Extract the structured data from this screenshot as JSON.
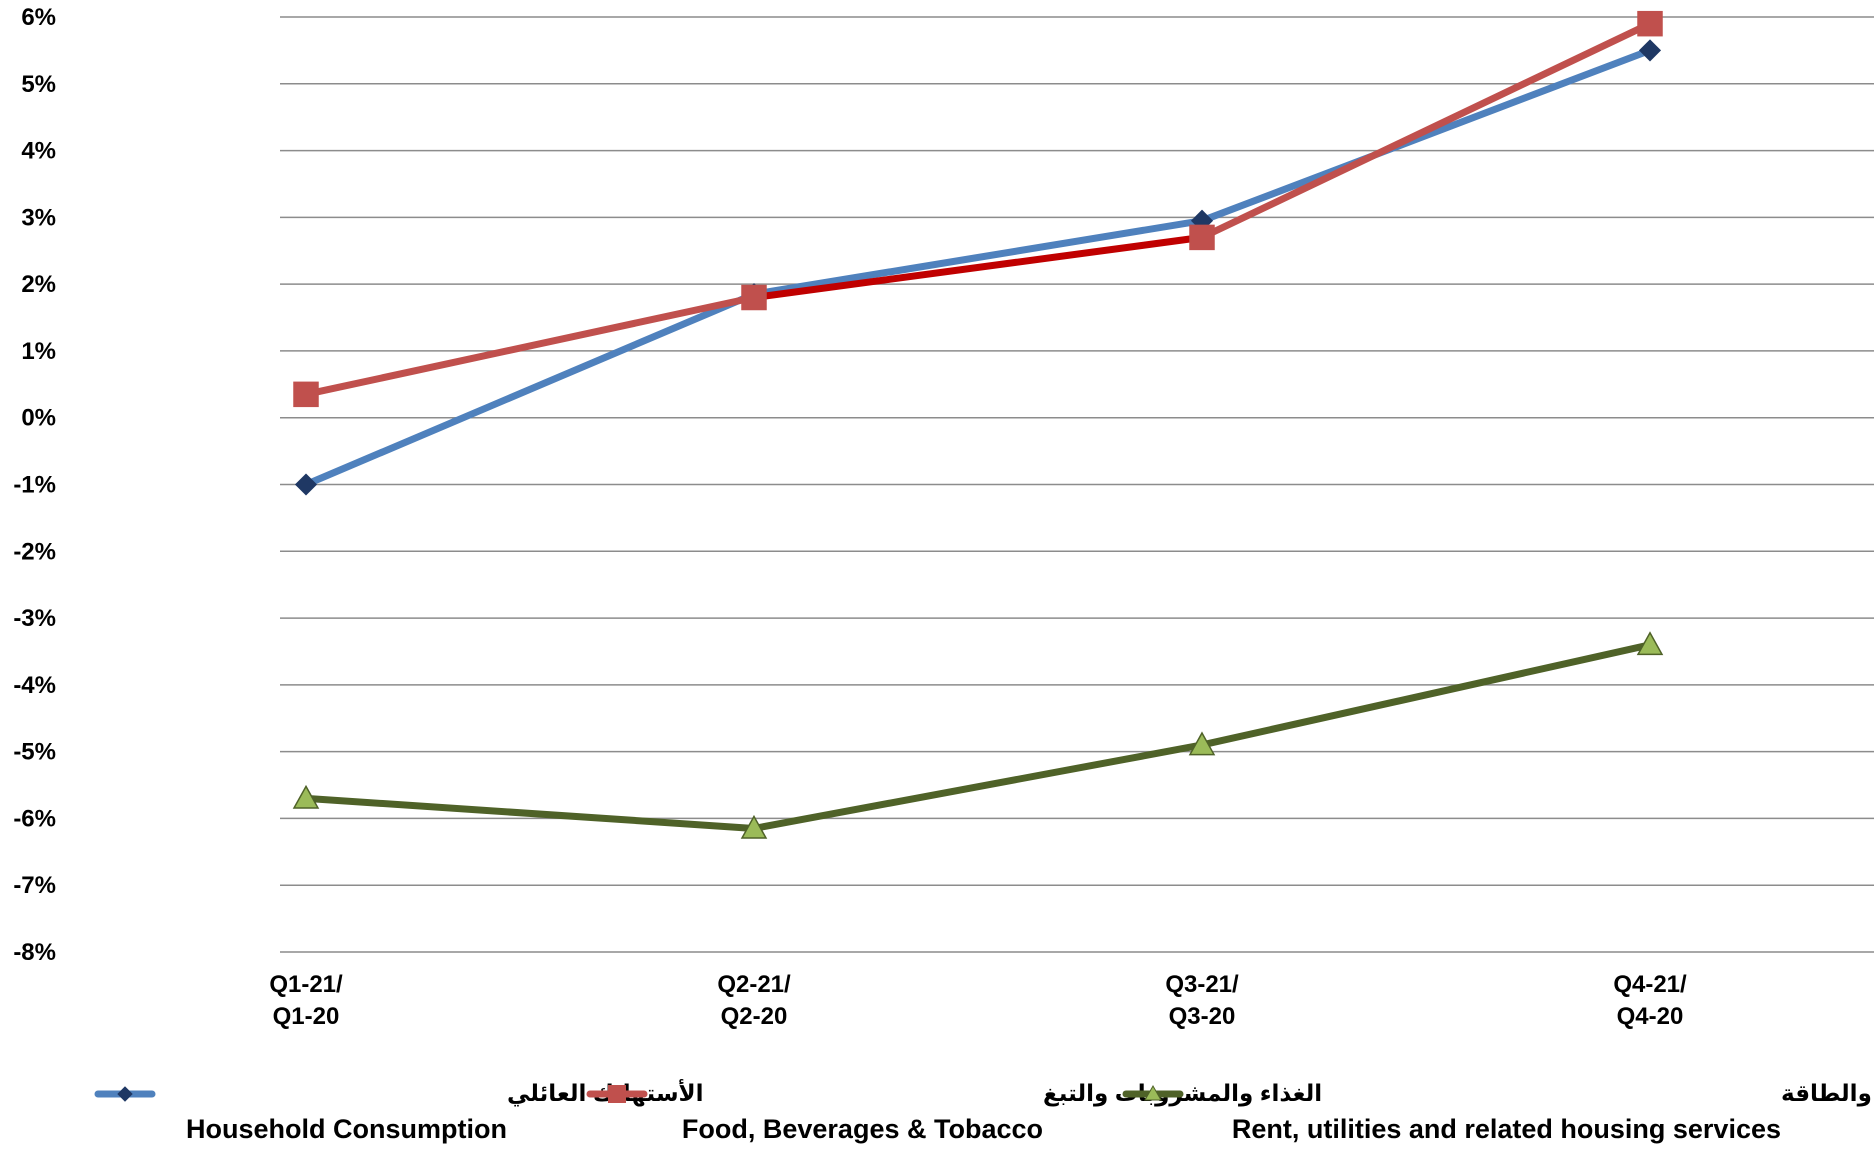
{
  "chart_data": {
    "type": "line",
    "categories": [
      [
        "Q1-21/",
        "Q1-20"
      ],
      [
        "Q2-21/",
        "Q2-20"
      ],
      [
        "Q3-21/",
        "Q3-20"
      ],
      [
        "Q4-21/",
        "Q4-20"
      ]
    ],
    "ylim": [
      -8,
      6
    ],
    "ytick_labels": [
      "6%",
      "5%",
      "4%",
      "3%",
      "2%",
      "1%",
      "0%",
      "-1%",
      "-2%",
      "-3%",
      "-4%",
      "-5%",
      "-6%",
      "-7%",
      "-8%"
    ],
    "grid": true,
    "legend_position": "bottom",
    "series": [
      {
        "name_ar": "الأستهلاك العائلي",
        "name": "Household Consumption",
        "values": [
          -1.0,
          1.85,
          2.95,
          5.5
        ],
        "color": "#4F81BD",
        "marker": "diamond",
        "marker_color": "#1F3864"
      },
      {
        "name_ar": "الغذاء والمشروبات والتبغ",
        "name": "Food, Beverages & Tobacco",
        "values": [
          0.35,
          1.8,
          2.7,
          5.9
        ],
        "color": "#C0504D",
        "segment_colors": [
          "#C0504D",
          "#C00000",
          "#C0504D"
        ],
        "marker": "square",
        "marker_color": "#C0504D"
      },
      {
        "name_ar": "الإيجار والوقود والطاقة",
        "name": "Rent, utilities and related housing services",
        "values": [
          -5.7,
          -6.15,
          -4.9,
          -3.4
        ],
        "color": "#4F6228",
        "marker": "triangle",
        "marker_color": "#9BBB59"
      }
    ]
  }
}
